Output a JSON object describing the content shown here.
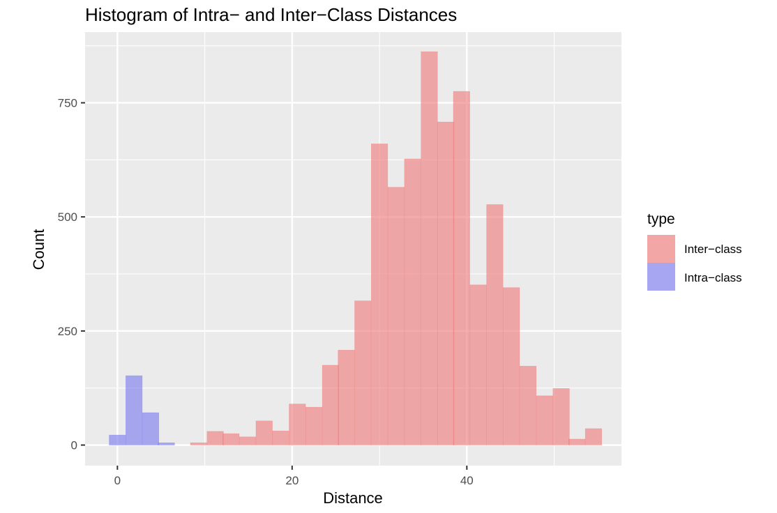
{
  "chart_data": {
    "type": "bar",
    "title": "Histogram of Intra− and Inter−Class Distances",
    "xlabel": "Distance",
    "ylabel": "Count",
    "xlim": [
      -3.7,
      57.7
    ],
    "ylim": [
      -45,
      905
    ],
    "x_ticks": [
      0,
      20,
      40
    ],
    "y_ticks": [
      0,
      250,
      500,
      750
    ],
    "x_tick_labels": [
      "0",
      "20",
      "40"
    ],
    "y_tick_labels": [
      "0",
      "250",
      "500",
      "750"
    ],
    "grid": true,
    "bin_width": 1.88,
    "legend": {
      "title": "type",
      "placement": "right",
      "entries": [
        "Inter−class",
        "Intra−class"
      ]
    },
    "colors": {
      "panel": "#ebebeb",
      "grid": "#ffffff",
      "inter": "#f08080",
      "intra": "#8080f0"
    },
    "series": [
      {
        "name": "Inter−class",
        "x": [
          9.3,
          11.2,
          13.0,
          14.9,
          16.8,
          18.7,
          20.6,
          22.5,
          24.4,
          26.2,
          28.1,
          30.0,
          31.9,
          33.8,
          35.7,
          37.6,
          39.4,
          41.3,
          43.2,
          45.1,
          47.0,
          48.9,
          50.8,
          52.6,
          54.5
        ],
        "values": [
          5,
          30,
          25,
          18,
          53,
          31,
          90,
          83,
          175,
          208,
          316,
          660,
          565,
          627,
          862,
          708,
          775,
          351,
          527,
          345,
          173,
          108,
          124,
          13,
          36
        ]
      },
      {
        "name": "Intra−class",
        "x": [
          0.0,
          1.9,
          3.8,
          5.6
        ],
        "values": [
          22,
          152,
          71,
          5
        ]
      }
    ]
  }
}
